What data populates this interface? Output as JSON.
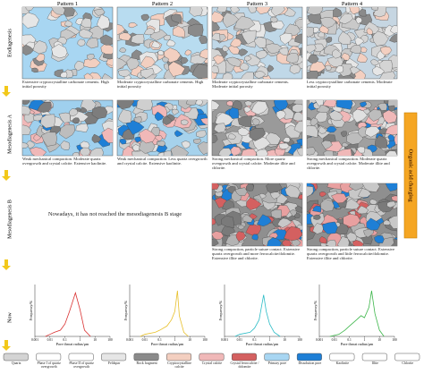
{
  "columns": [
    "Pattern 1",
    "Pattern 2",
    "Pattern 3",
    "Pattern 4"
  ],
  "stages": [
    "Eodiagenesis",
    "Mesodiagenesis A",
    "Mesodiagenesis B",
    "Now"
  ],
  "side_label": "Organic acid charging",
  "eodiagenesis": [
    "Extensive cryptocrystalline carbonate cements. High initial porosity",
    "Moderate cryptocrystalline carbonate cements. High initial porosity",
    "Moderate cryptocrystalline carbonate cements. Moderate initial porosity",
    "Less cryptocrystalline carbonate cements. Moderate initial porosity"
  ],
  "mesodiagenesis_a": [
    "Weak mechanical compaction. Moderate quartz overgrowth and crystal calcite. Extensive kaolinite.",
    "Weak mechanical compaction. Less quartz overgrowth and crystal calcite. Extensive kaolinite.",
    "Strong mechanical compaction. More quartz overgrowth and crystal calcite. Moderate illite and chlorite.",
    "Strong mechanical compaction. Moderate quartz overgrowth and crystal calcite. Moderate illite and chlorite."
  ],
  "mesodiagenesis_b_note": "Nowadays, it has not reached the mesodiagenesis B stage",
  "mesodiagenesis_b": [
    "Strong compaction, particle suture contact. Extensive quartz overgrowth and more ferrocalcite/dolomite. Extensive illite and chlorite.",
    "Strong compaction, particle suture contact. Extensive quartz overgrowth and little ferrocalcite/dolomite. Extensive illite and chlorite."
  ],
  "charts": [
    {
      "type": "line",
      "color": "#d93030",
      "y_label": "Frequency/%",
      "x_label": "Pore throat radius/μm",
      "log_x": true,
      "xlim": [
        0.001,
        100
      ],
      "ylim": [
        0,
        25
      ],
      "xticks": [
        0.001,
        0.01,
        0.1,
        1,
        10,
        100
      ],
      "x": [
        0.005,
        0.01,
        0.02,
        0.05,
        0.1,
        0.2,
        0.5,
        1,
        2,
        5
      ],
      "values": [
        0,
        1,
        2,
        3,
        6,
        12,
        21,
        13,
        3,
        0
      ]
    },
    {
      "type": "line",
      "color": "#e8c02a",
      "y_label": "Frequency/%",
      "x_label": "Pore throat radius/μm",
      "log_x": true,
      "xlim": [
        0.001,
        100
      ],
      "ylim": [
        0,
        25
      ],
      "xticks": [
        0.001,
        0.01,
        0.1,
        1,
        10,
        100
      ],
      "x": [
        0.005,
        0.01,
        0.05,
        0.1,
        0.3,
        0.6,
        1,
        1.5,
        2,
        4,
        8
      ],
      "values": [
        0,
        1,
        2,
        3,
        5,
        8,
        12,
        22,
        10,
        2,
        0
      ]
    },
    {
      "type": "line",
      "color": "#2cbcc6",
      "y_label": "Frequency/%",
      "x_label": "Pore throat radius/μm",
      "log_x": true,
      "xlim": [
        0.001,
        100
      ],
      "ylim": [
        0,
        25
      ],
      "xticks": [
        0.001,
        0.01,
        0.1,
        1,
        10,
        100
      ],
      "x": [
        0.005,
        0.01,
        0.05,
        0.1,
        0.2,
        0.4,
        0.6,
        1,
        2,
        5
      ],
      "values": [
        0,
        1,
        2,
        4,
        8,
        20,
        12,
        6,
        2,
        0
      ]
    },
    {
      "type": "line",
      "color": "#3cb64a",
      "y_label": "Frequency/%",
      "x_label": "Pore throat radius/μm",
      "log_x": true,
      "xlim": [
        0.001,
        100
      ],
      "ylim": [
        0,
        25
      ],
      "xticks": [
        0.001,
        0.01,
        0.1,
        1,
        10,
        100
      ],
      "x": [
        0.005,
        0.02,
        0.05,
        0.1,
        0.3,
        0.6,
        1,
        2,
        3,
        5,
        10,
        20
      ],
      "values": [
        0,
        1,
        3,
        5,
        8,
        10,
        9,
        14,
        22,
        11,
        3,
        0
      ]
    }
  ],
  "legend": [
    "Quartz",
    "Phase I of quartz overgrowth",
    "Phase II of quartz overgrowth",
    "Feldspar",
    "Rock fragment",
    "Cryptocrystalline calcite",
    "Crystal calcite",
    "Crystal ferrocalcite / dolomite",
    "Primary pore",
    "Dissolution pore",
    "Kaolinite",
    "Illite",
    "Chlorite"
  ]
}
